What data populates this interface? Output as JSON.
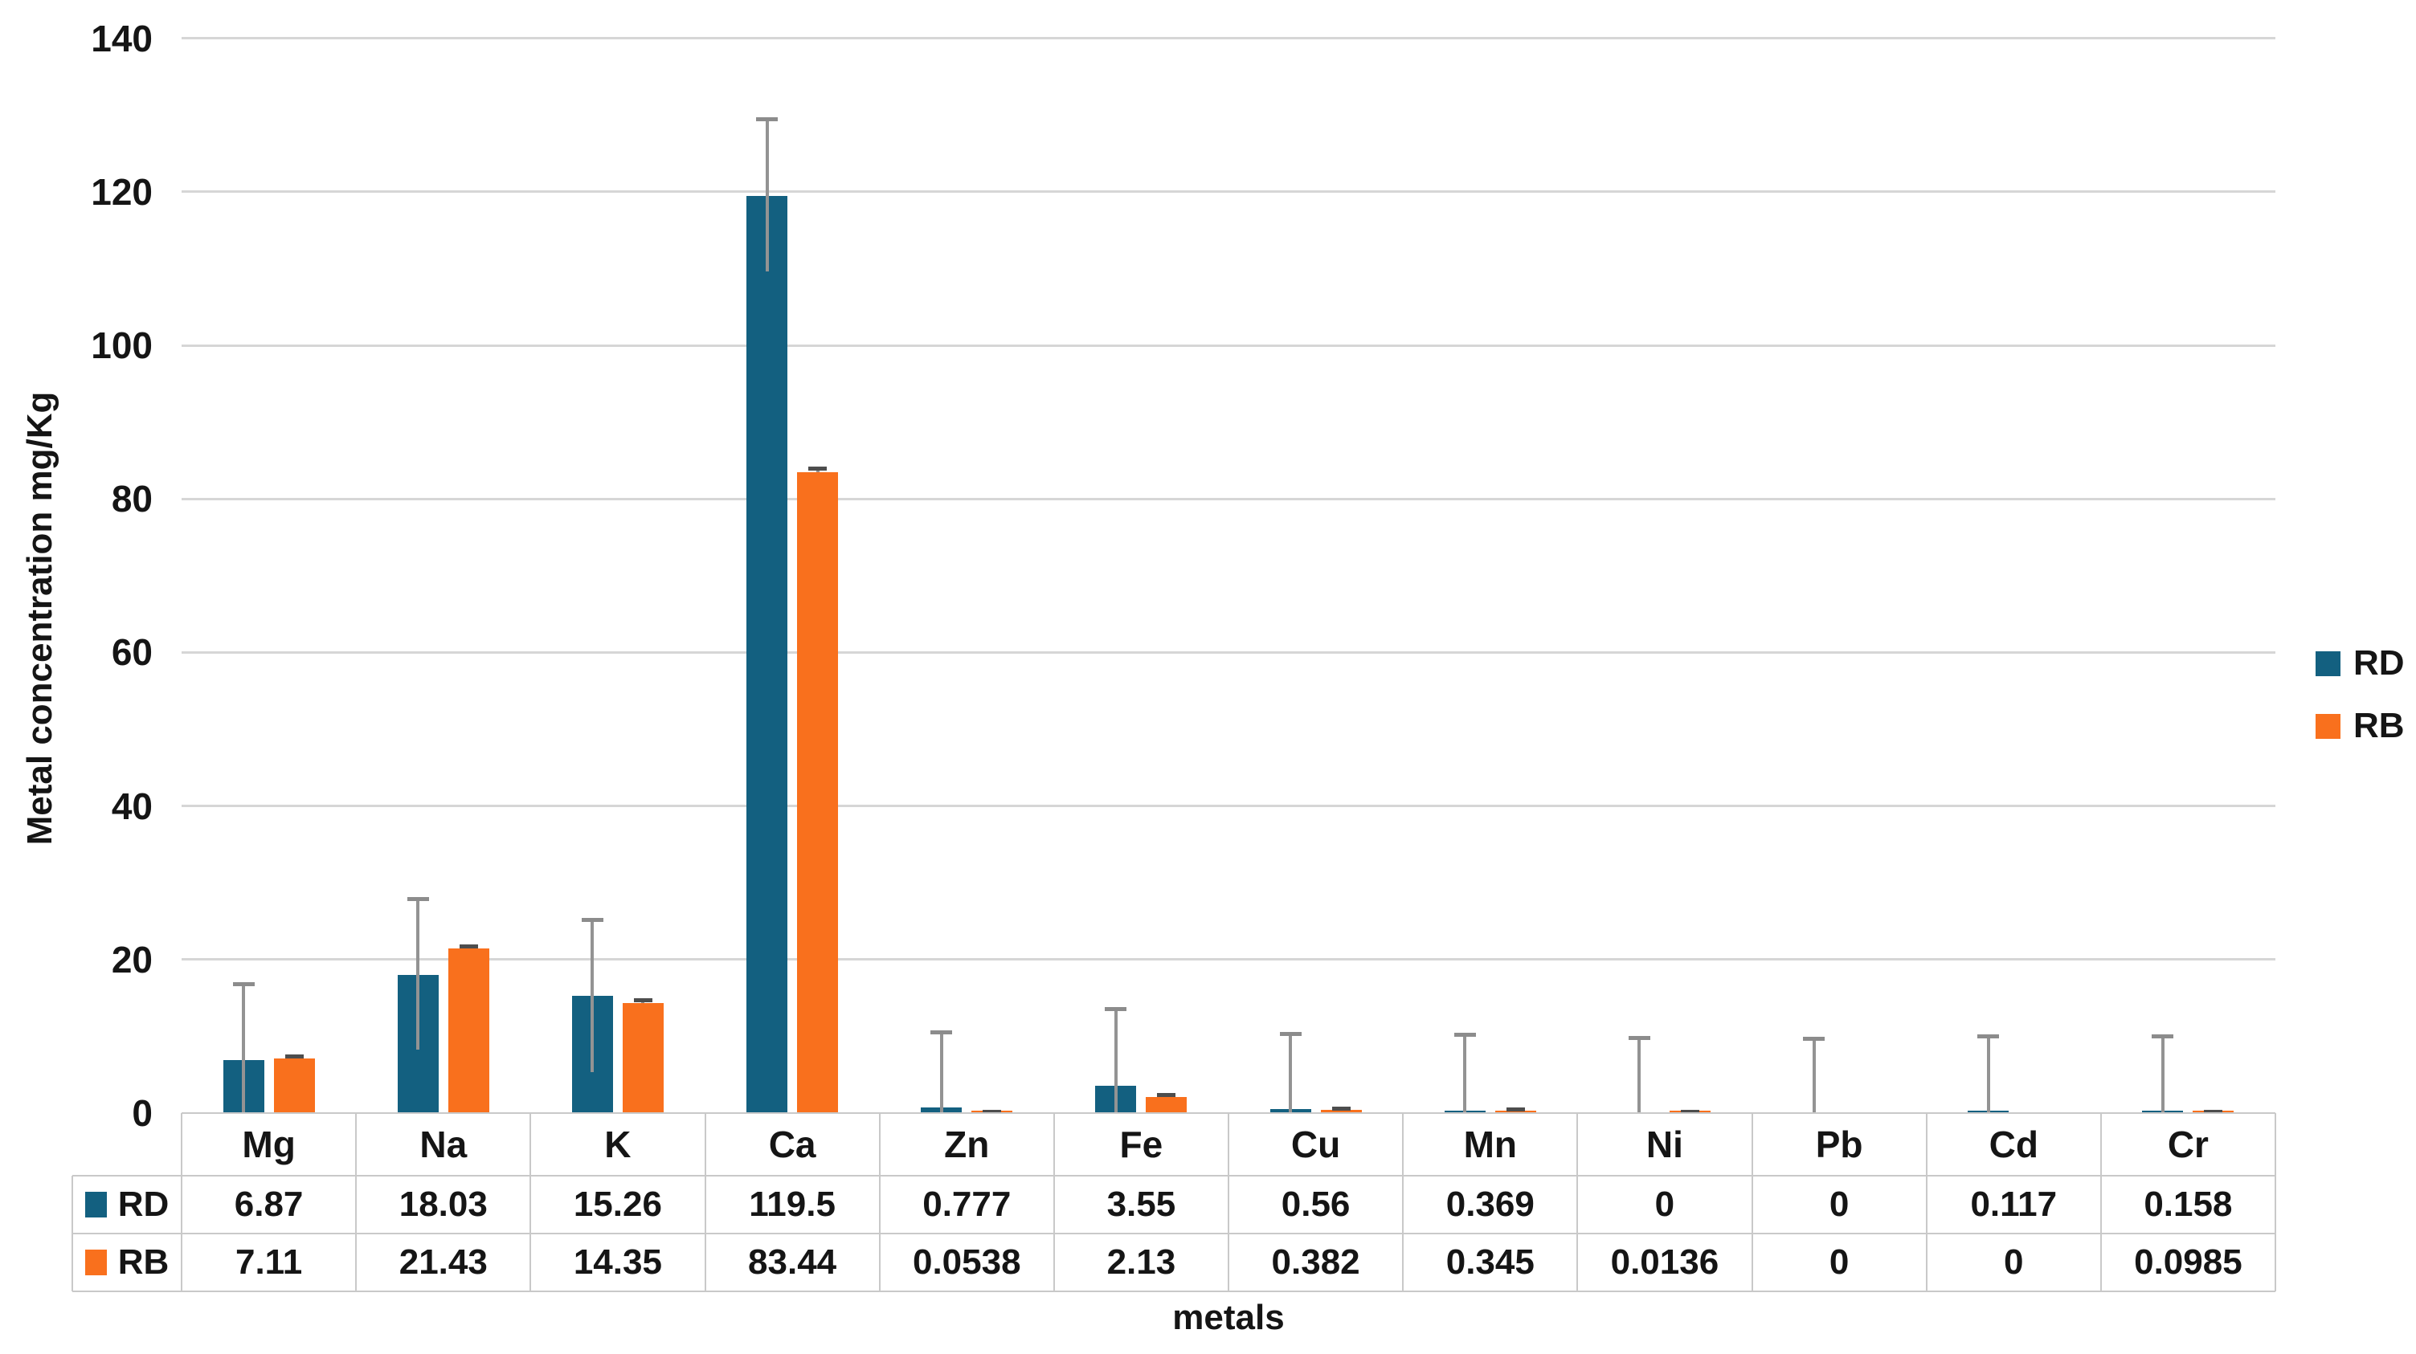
{
  "figure": {
    "y_axis_title": "Metal concentration mg/Kg",
    "x_axis_title": "metals",
    "y_ticks": [
      "0",
      "20",
      "40",
      "60",
      "80",
      "100",
      "120",
      "140"
    ],
    "y_max": 140
  },
  "legend": {
    "position": "right",
    "items": [
      {
        "label": "RD",
        "color": "#136080",
        "swatch": "rd-legend-swatch"
      },
      {
        "label": "RB",
        "color": "#F9701D",
        "swatch": "rb-legend-swatch"
      }
    ]
  },
  "colors": {
    "rd_bar": "#136080",
    "rb_bar": "#F9701D",
    "gridline": "#d6d6d6",
    "table_border": "#c9c9c9",
    "error_stem": "#939393",
    "error_cap_rd": "#8c8c8c",
    "error_cap_rb": "#4d4d4d",
    "text": "#151515",
    "background": "#ffffff"
  },
  "chart_data": {
    "type": "bar",
    "title": "",
    "xlabel": "metals",
    "ylabel": "Metal concentration mg/Kg",
    "ylim": [
      0,
      140
    ],
    "y_tick_step": 20,
    "grid": true,
    "legend_position": "right",
    "categories": [
      "Mg",
      "Na",
      "K",
      "Ca",
      "Zn",
      "Fe",
      "Cu",
      "Mn",
      "Ni",
      "Pb",
      "Cd",
      "Cr"
    ],
    "series": [
      {
        "name": "RD",
        "color": "#136080",
        "values": [
          6.87,
          18.03,
          15.26,
          119.5,
          0.777,
          3.55,
          0.56,
          0.369,
          0,
          0,
          0.117,
          0.158
        ],
        "value_labels": [
          "6.87",
          "18.03",
          "15.26",
          "119.5",
          "0.777",
          "3.55",
          "0.56",
          "0.369",
          "0",
          "0",
          "0.117",
          "0.158"
        ],
        "errors_up": [
          9.9,
          9.8,
          9.9,
          9.9,
          9.7,
          10.0,
          9.7,
          9.8,
          9.8,
          9.7,
          9.9,
          9.8
        ]
      },
      {
        "name": "RB",
        "color": "#F9701D",
        "values": [
          7.11,
          21.43,
          14.35,
          83.44,
          0.0538,
          2.13,
          0.382,
          0.345,
          0.0136,
          0,
          0,
          0.0985
        ],
        "value_labels": [
          "7.11",
          "21.43",
          "14.35",
          "83.44",
          "0.0538",
          "2.13",
          "0.382",
          "0.345",
          "0.0136",
          "0",
          "0",
          "0.0985"
        ],
        "errors_up": [
          0.3,
          0.25,
          0.3,
          0.5,
          0.15,
          0.25,
          0.15,
          0.15,
          0.1,
          0,
          0,
          0.1
        ]
      }
    ]
  }
}
